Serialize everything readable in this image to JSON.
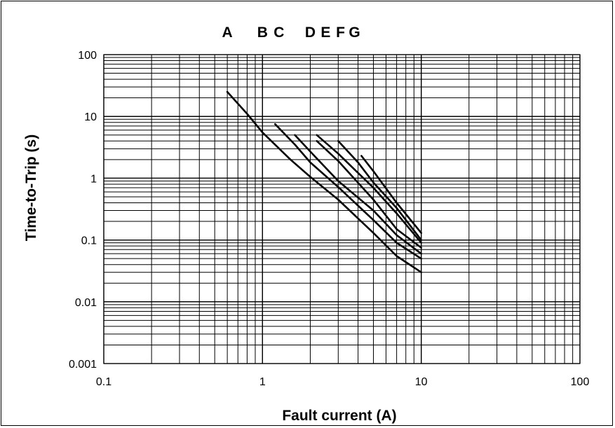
{
  "chart_data": {
    "type": "line",
    "title": "",
    "xlabel": "Fault current (A)",
    "ylabel": "Time-to-Trip (s)",
    "x_scale": "log",
    "y_scale": "log",
    "xlim": [
      0.1,
      100
    ],
    "ylim": [
      0.001,
      100
    ],
    "x_ticks": [
      "0.1",
      "1",
      "10",
      "100"
    ],
    "y_ticks": [
      "100",
      "10",
      "1",
      "0.1",
      "0.01",
      "0.001"
    ],
    "grid": true,
    "legend": "curve letters above plot",
    "curve_labels": [
      {
        "text": "A",
        "x": 0.6
      },
      {
        "text": "B",
        "x": 1.0
      },
      {
        "text": "C",
        "x": 1.27
      },
      {
        "text": "D",
        "x": 2.0
      },
      {
        "text": "E",
        "x": 2.5
      },
      {
        "text": "F",
        "x": 3.1
      },
      {
        "text": "G",
        "x": 3.8
      }
    ],
    "series": [
      {
        "x": [
          0.6,
          0.8,
          1.0,
          1.5,
          2.0,
          3.0,
          5.0,
          7.0,
          10.0
        ],
        "y": [
          25,
          11,
          5.5,
          2.0,
          1.05,
          0.45,
          0.13,
          0.055,
          0.03
        ]
      },
      {
        "x": [
          1.2,
          1.6,
          2.0,
          3.0,
          5.0,
          7.0,
          10.0
        ],
        "y": [
          7.5,
          3.5,
          1.8,
          0.72,
          0.21,
          0.09,
          0.05
        ]
      },
      {
        "x": [
          1.6,
          2.0,
          3.0,
          5.0,
          7.0,
          10.0
        ],
        "y": [
          5.0,
          2.7,
          0.9,
          0.3,
          0.12,
          0.06
        ]
      },
      {
        "x": [
          2.2,
          3.0,
          5.0,
          7.0,
          10.0
        ],
        "y": [
          4.0,
          1.9,
          0.45,
          0.15,
          0.075
        ]
      },
      {
        "x": [
          2.2,
          3.0,
          5.0,
          7.0,
          10.0
        ],
        "y": [
          5.0,
          2.5,
          0.7,
          0.27,
          0.09
        ]
      },
      {
        "x": [
          3.0,
          4.0,
          5.0,
          7.0,
          10.0
        ],
        "y": [
          4.0,
          1.8,
          0.85,
          0.33,
          0.1
        ]
      },
      {
        "x": [
          4.2,
          5.0,
          7.0,
          10.0
        ],
        "y": [
          2.3,
          1.3,
          0.4,
          0.13
        ]
      }
    ]
  }
}
